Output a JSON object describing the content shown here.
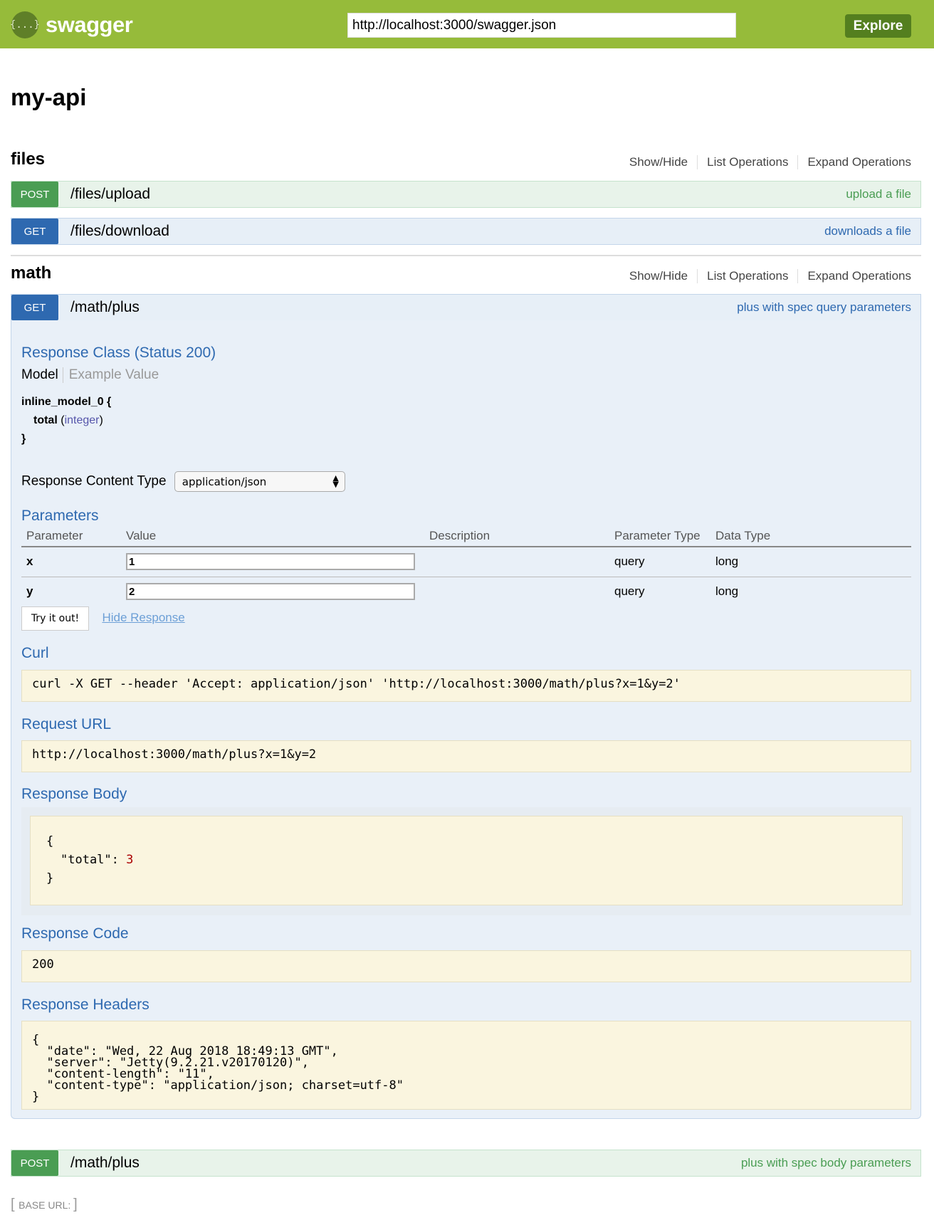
{
  "header": {
    "logo_glyph": "{...}",
    "logo_text": "swagger",
    "url": "http://localhost:3000/swagger.json",
    "explore_label": "Explore"
  },
  "api_title": "my-api",
  "resource_links": [
    "Show/Hide",
    "List Operations",
    "Expand Operations"
  ],
  "resources": [
    {
      "name": "files",
      "operations": [
        {
          "method": "POST",
          "path": "/files/upload",
          "summary": "upload a file"
        },
        {
          "method": "GET",
          "path": "/files/download",
          "summary": "downloads a file"
        }
      ]
    },
    {
      "name": "math",
      "operations": [
        {
          "method": "GET",
          "path": "/math/plus",
          "summary": "plus with spec query parameters"
        },
        {
          "method": "POST",
          "path": "/math/plus",
          "summary": "plus with spec body parameters"
        }
      ]
    }
  ],
  "expanded": {
    "response_class_title": "Response Class (Status 200)",
    "tabs": [
      "Model",
      "Example Value"
    ],
    "model": {
      "name": "inline_model_0 {",
      "field": "total",
      "type_open": "(",
      "type": "integer",
      "type_close": ")",
      "close": "}"
    },
    "content_type_label": "Response Content Type",
    "content_type_value": "application/json",
    "parameters_title": "Parameters",
    "param_headers": [
      "Parameter",
      "Value",
      "Description",
      "Parameter Type",
      "Data Type"
    ],
    "params": [
      {
        "name": "x",
        "value": "1",
        "description": "",
        "type": "query",
        "data_type": "long"
      },
      {
        "name": "y",
        "value": "2",
        "description": "",
        "type": "query",
        "data_type": "long"
      }
    ],
    "try_label": "Try it out!",
    "hide_label": "Hide Response",
    "curl_title": "Curl",
    "curl": "curl -X GET --header 'Accept: application/json' 'http://localhost:3000/math/plus?x=1&y=2'",
    "request_url_title": "Request URL",
    "request_url": "http://localhost:3000/math/plus?x=1&y=2",
    "response_body_title": "Response Body",
    "body_open": "{",
    "body_key": "\"total\": ",
    "body_value": "3",
    "body_close": "}",
    "response_code_title": "Response Code",
    "response_code": "200",
    "response_headers_title": "Response Headers",
    "response_headers": "{\n  \"date\": \"Wed, 22 Aug 2018 18:49:13 GMT\",\n  \"server\": \"Jetty(9.2.21.v20170120)\",\n  \"content-length\": \"11\",\n  \"content-type\": \"application/json; charset=utf-8\"\n}"
  },
  "base_url_label": "BASE URL: ",
  "colors": {
    "header": "#96bb3a",
    "post": "#4a9d53",
    "get": "#2e69b0"
  }
}
